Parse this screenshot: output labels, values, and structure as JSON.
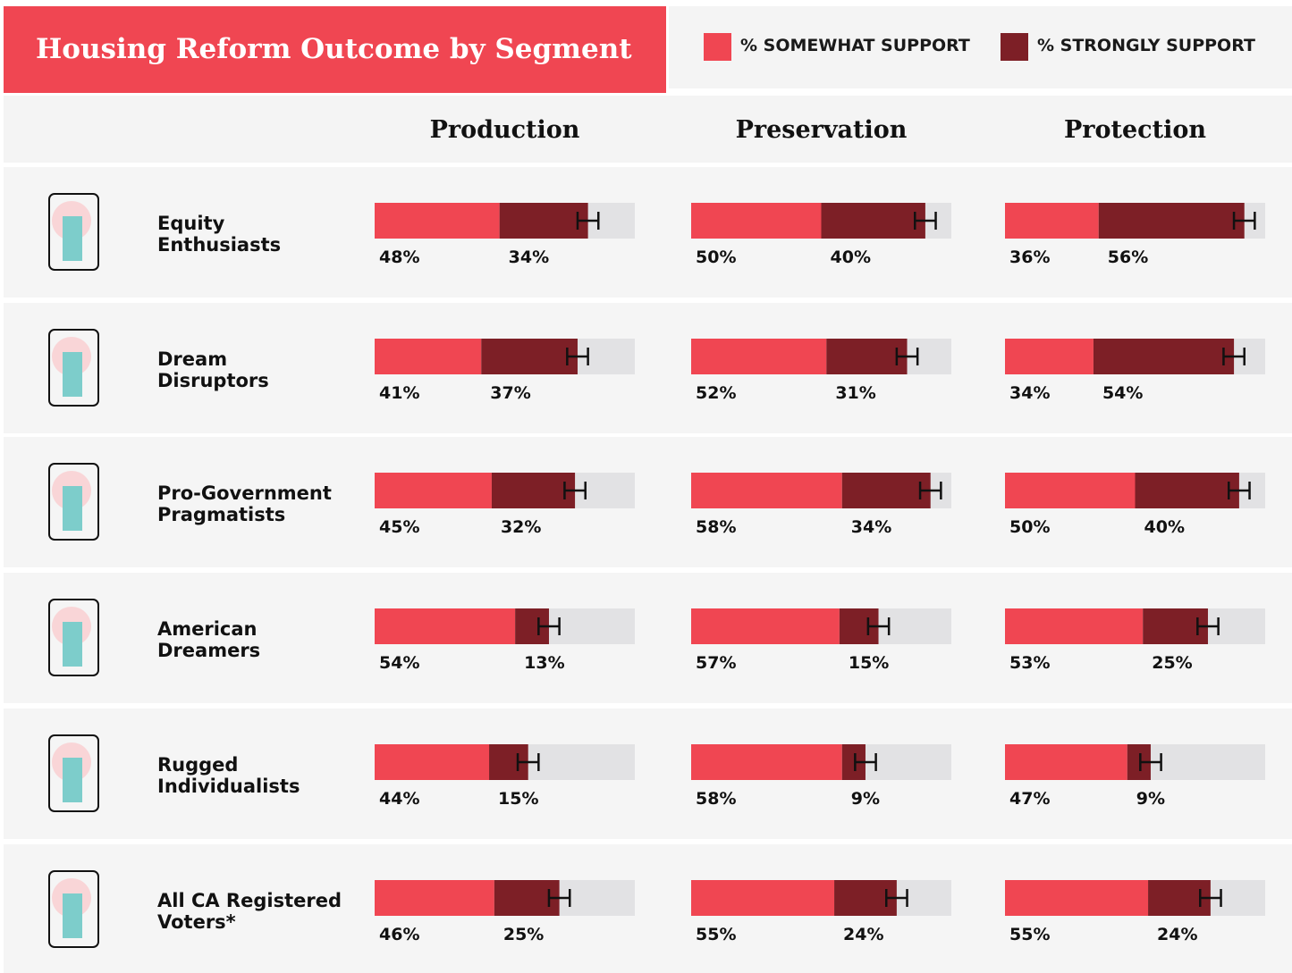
{
  "chart_data": {
    "type": "stacked-bar",
    "title": "Housing Reform Outcome by Segment",
    "panels": [
      "Production",
      "Preservation",
      "Protection"
    ],
    "categories": [
      "Equity\nEnthusiasts",
      "Dream\nDisruptors",
      "Pro-Government\nPragmatists",
      "American\nDreamers",
      "Rugged\nIndividualists",
      "All CA Registered\nVoters*"
    ],
    "xlim": [
      0,
      100
    ],
    "series": [
      {
        "name": "% SOMEWHAT SUPPORT",
        "color": "#f04652",
        "values": [
          [
            48,
            50,
            36
          ],
          [
            41,
            52,
            34
          ],
          [
            45,
            58,
            50
          ],
          [
            54,
            57,
            53
          ],
          [
            44,
            58,
            47
          ],
          [
            46,
            55,
            55
          ]
        ],
        "value_labels": [
          [
            "48%",
            "50%",
            "36%"
          ],
          [
            "41%",
            "52%",
            "34%"
          ],
          [
            "45%",
            "58%",
            "50%"
          ],
          [
            "54%",
            "57%",
            "53%"
          ],
          [
            "44%",
            "58%",
            "47%"
          ],
          [
            "46%",
            "55%",
            "55%"
          ]
        ]
      },
      {
        "name": "% STRONGLY SUPPORT",
        "color": "#7d1f26",
        "values": [
          [
            34,
            40,
            56
          ],
          [
            37,
            31,
            54
          ],
          [
            32,
            34,
            40
          ],
          [
            13,
            15,
            25
          ],
          [
            15,
            9,
            9
          ],
          [
            25,
            24,
            24
          ]
        ],
        "value_labels": [
          [
            "34%",
            "40%",
            "56%"
          ],
          [
            "37%",
            "31%",
            "54%"
          ],
          [
            "32%",
            "34%",
            "40%"
          ],
          [
            "13%",
            "15%",
            "25%"
          ],
          [
            "15%",
            "9%",
            "9%"
          ],
          [
            "25%",
            "24%",
            "24%"
          ]
        ]
      }
    ],
    "errors": [
      [
        4,
        4,
        4
      ],
      [
        4,
        4,
        4
      ],
      [
        4,
        4,
        4
      ],
      [
        4,
        4,
        4
      ],
      [
        4,
        4,
        4
      ],
      [
        4,
        4,
        4
      ]
    ],
    "track_color": "#e2e2e4"
  }
}
